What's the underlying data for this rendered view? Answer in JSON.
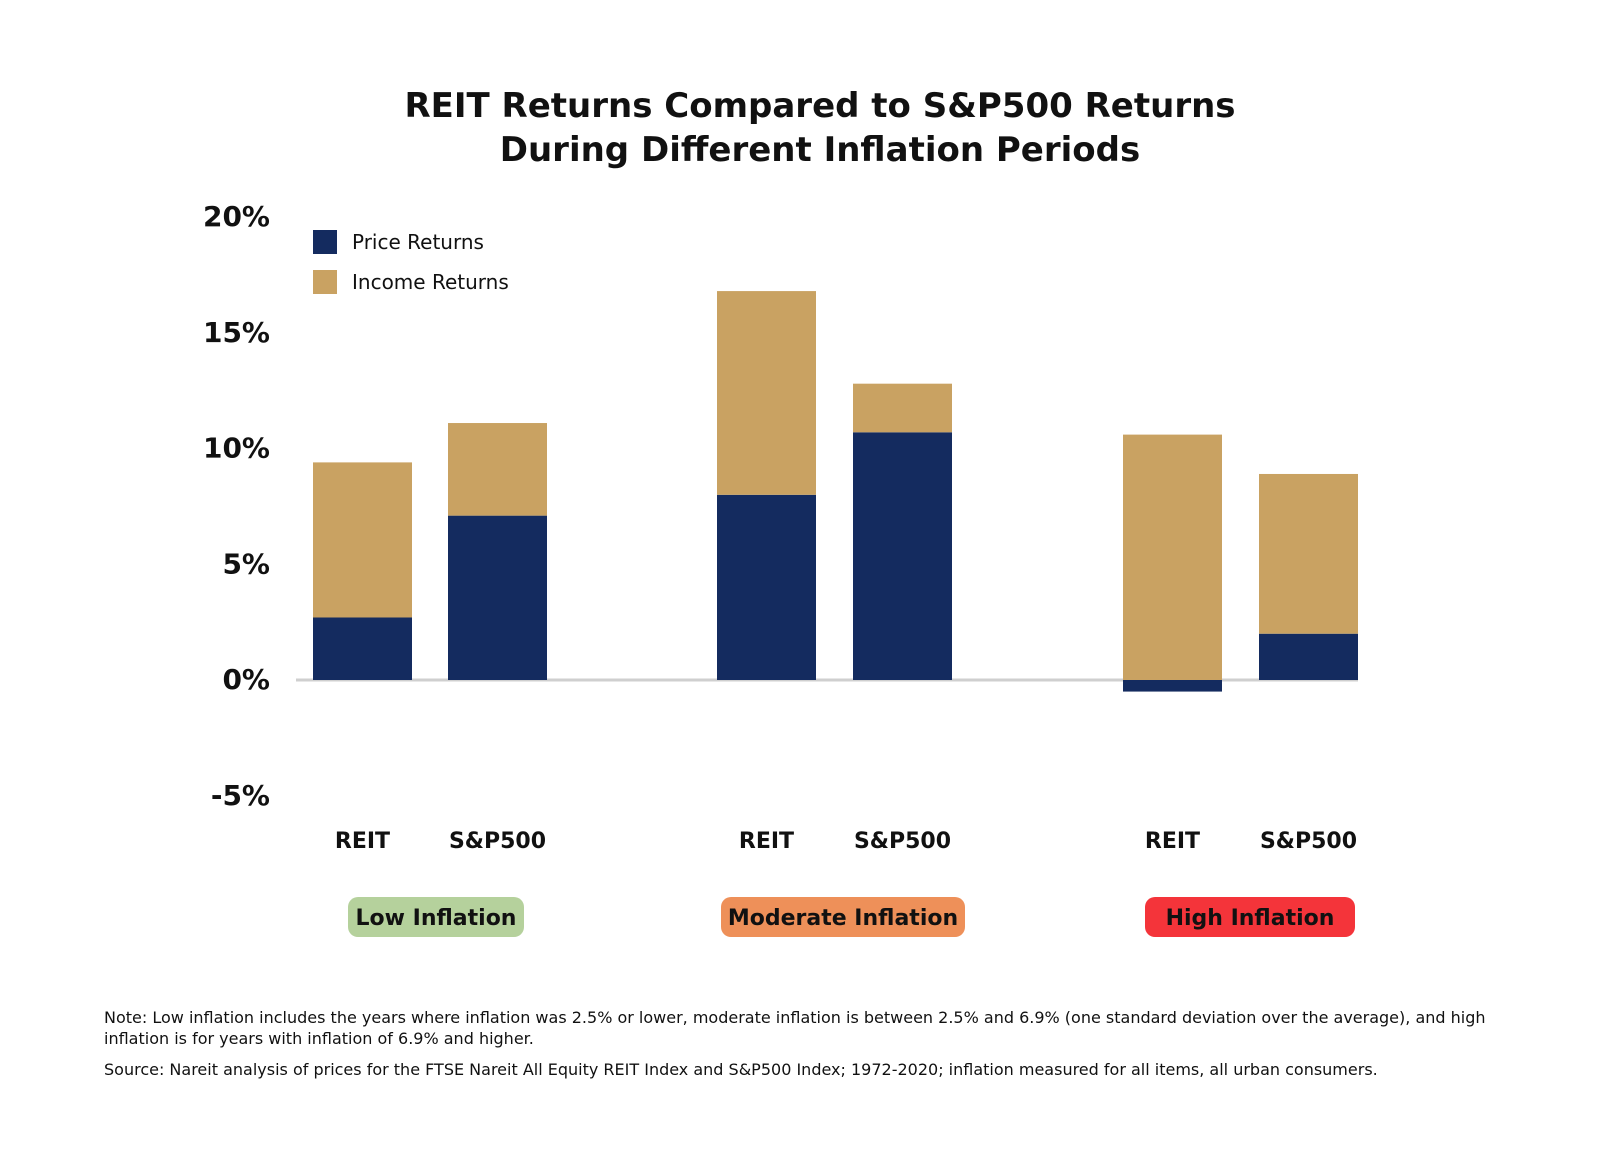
{
  "chart_data": {
    "type": "bar",
    "stacked": true,
    "title_lines": [
      "REIT Returns Compared to S&P500 Returns",
      "During Different Inflation Periods"
    ],
    "y_ticks": [
      "20%",
      "15%",
      "10%",
      "5%",
      "0%",
      "-5%"
    ],
    "y_tick_values": [
      20,
      15,
      10,
      5,
      0,
      -5
    ],
    "ylim": [
      -5,
      20
    ],
    "grid": false,
    "legend_position": "top-left",
    "groups": [
      {
        "label": "Low Inflation",
        "color": "#b5d19c"
      },
      {
        "label": "Moderate Inflation",
        "color": "#ee9059"
      },
      {
        "label": "High Inflation",
        "color": "#f4343a"
      }
    ],
    "categories": [
      "REIT",
      "S&P500",
      "REIT",
      "S&P500",
      "REIT",
      "S&P500"
    ],
    "series": [
      {
        "name": "Price Returns",
        "color": "#142b5f",
        "values": [
          2.7,
          7.1,
          8.0,
          10.7,
          -0.5,
          2.0
        ]
      },
      {
        "name": "Income Returns",
        "color": "#c9a262",
        "values": [
          6.7,
          4.0,
          8.8,
          2.1,
          10.6,
          6.9
        ]
      }
    ]
  },
  "notes": {
    "note": "Note: Low inflation includes the years where inflation was 2.5% or lower, moderate inflation is between 2.5% and 6.9% (one standard deviation over the average), and high inflation is for years with inflation of 6.9% and higher.",
    "source": "Source: Nareit analysis of prices for the FTSE Nareit All Equity REIT Index and S&P500 Index; 1972-2020; inflation measured for all items, all urban consumers."
  }
}
